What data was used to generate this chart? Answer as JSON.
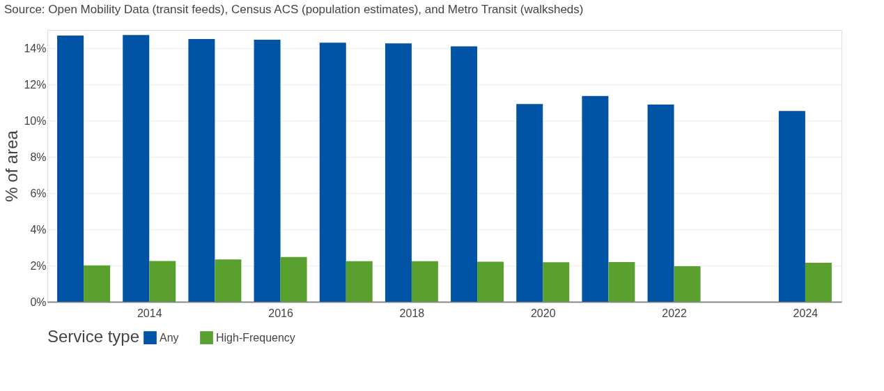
{
  "chart_data": {
    "type": "bar",
    "annotations": [
      "Source: Open Mobility Data (transit feeds), Census ACS (population estimates), and Metro Transit (walksheds)"
    ],
    "ylabel": "% of area",
    "legend_title": "Service type",
    "legend": "bottom",
    "x": [
      2013,
      2014,
      2015,
      2016,
      2017,
      2018,
      2019,
      2020,
      2021,
      2022,
      2024
    ],
    "series": [
      {
        "name": "Any",
        "color": "#0053a5",
        "values": [
          14.69,
          14.72,
          14.5,
          14.46,
          14.3,
          14.26,
          14.1,
          10.91,
          11.36,
          10.88,
          10.53
        ]
      },
      {
        "name": "High-Frequency",
        "color": "#5aa02e",
        "values": [
          2.01,
          2.25,
          2.34,
          2.47,
          2.24,
          2.24,
          2.21,
          2.18,
          2.19,
          1.96,
          2.15
        ]
      }
    ],
    "xlim": [
      2012.5,
      2024.5
    ],
    "xticks": [
      2014,
      2016,
      2018,
      2020,
      2022,
      2024
    ],
    "ylim": [
      0,
      15
    ],
    "yticks": [
      {
        "value": 0,
        "label": "0%"
      },
      {
        "value": 2,
        "label": "2%"
      },
      {
        "value": 4,
        "label": "4%"
      },
      {
        "value": 6,
        "label": "6%"
      },
      {
        "value": 8,
        "label": "8%"
      },
      {
        "value": 10,
        "label": "10%"
      },
      {
        "value": 12,
        "label": "12%"
      },
      {
        "value": 14,
        "label": "14%"
      }
    ],
    "grid": "y"
  }
}
